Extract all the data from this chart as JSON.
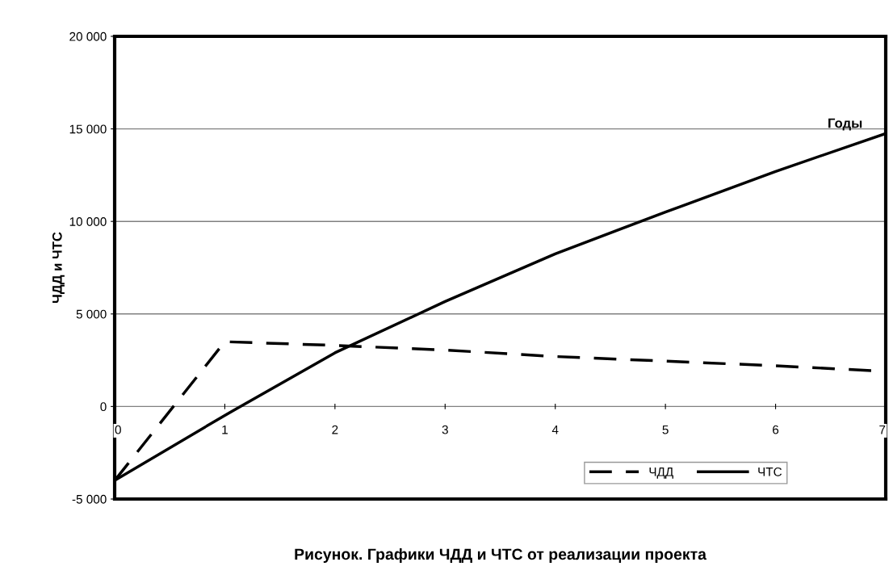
{
  "chart_data": {
    "type": "line",
    "title": "Рисунок. Графики ЧДД и ЧТС от реализации проекта",
    "xlabel": "Годы",
    "ylabel": "ЧДД и ЧТС",
    "x": [
      0,
      1,
      2,
      3,
      4,
      5,
      6,
      7
    ],
    "series": [
      {
        "name": "ЧДД",
        "color": "#000000",
        "line_style": "dashed",
        "values": [
          -4000,
          3500,
          3300,
          3050,
          2700,
          2450,
          2200,
          1900
        ]
      },
      {
        "name": "ЧТС",
        "color": "#000000",
        "line_style": "solid",
        "values": [
          -4000,
          -480,
          2900,
          5670,
          8250,
          10500,
          12700,
          14750
        ]
      }
    ],
    "xlim": [
      0,
      7
    ],
    "xticks": [
      0,
      1,
      2,
      3,
      4,
      5,
      6,
      7
    ],
    "ylim": [
      -5000,
      20000
    ],
    "yticks": [
      {
        "value": -5000,
        "label": "-5 000"
      },
      {
        "value": 0,
        "label": "0"
      },
      {
        "value": 5000,
        "label": "5 000"
      },
      {
        "value": 10000,
        "label": "10 000"
      },
      {
        "value": 15000,
        "label": "15 000"
      },
      {
        "value": 20000,
        "label": "20 000"
      }
    ],
    "grid": "y",
    "legend": "bottom right",
    "marker": "none"
  }
}
